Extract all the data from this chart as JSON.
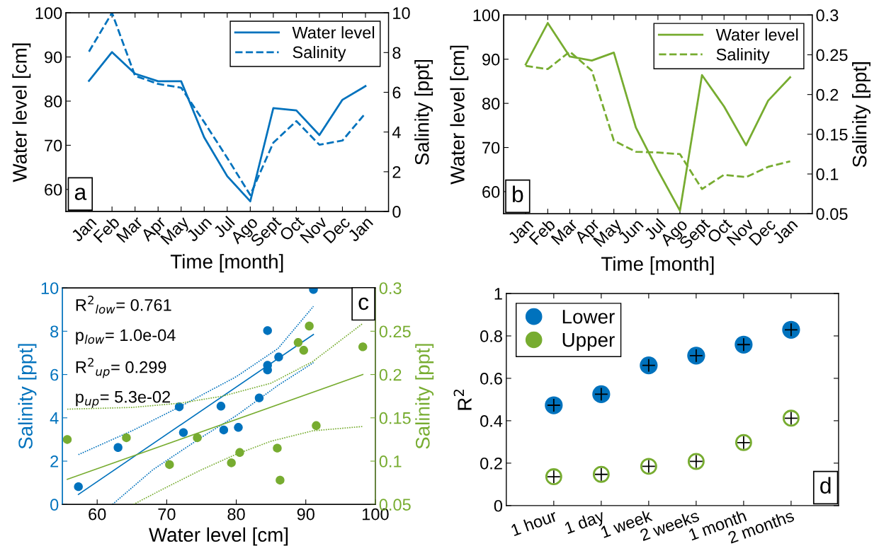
{
  "chart_data": [
    {
      "type": "line",
      "xlabel": "Time [month]",
      "ylabel": "Water level [cm]",
      "y2label": "Salinity [ppt]",
      "categories": [
        "Jan",
        "Feb",
        "Mar",
        "Apr",
        "May",
        "Jun",
        "Jul",
        "Ago",
        "Sept",
        "Oct",
        "Nov",
        "Dec",
        "Jan"
      ],
      "series": [
        {
          "name": "Water level",
          "color": "#0072bd",
          "line_style": "solid",
          "values": [
            84.6,
            91.1,
            86.2,
            84.5,
            84.5,
            71.8,
            63.0,
            57.3,
            78.4,
            77.9,
            72.3,
            80.3,
            83.4
          ]
        },
        {
          "name": "Salinity",
          "color": "#0072bd",
          "line_style": "dashed",
          "axis": "y2",
          "values": [
            8.05,
            10.0,
            6.83,
            6.42,
            6.23,
            4.5,
            2.7,
            0.83,
            3.46,
            4.55,
            3.36,
            3.57,
            4.95
          ]
        }
      ],
      "ylim": [
        55,
        100
      ],
      "yticks": [
        60,
        70,
        80,
        90,
        100
      ],
      "y2lim": [
        0,
        10
      ],
      "y2ticks": [
        0,
        2,
        4,
        6,
        8,
        10
      ],
      "legend": "top right",
      "annotations": [
        "a"
      ]
    },
    {
      "type": "line",
      "xlabel": "Time [month]",
      "ylabel": "Water level [cm]",
      "y2label": "Salinity [ppt]",
      "categories": [
        "Jan",
        "Feb",
        "Mar",
        "Apr",
        "May",
        "Jun",
        "Jul",
        "Ago",
        "Sept",
        "Oct",
        "Nov",
        "Dec",
        "Jan"
      ],
      "series": [
        {
          "name": "Water level",
          "color": "#77ac30",
          "line_style": "solid",
          "values": [
            88.8,
            98.2,
            90.6,
            89.7,
            91.5,
            74.5,
            64.8,
            55.7,
            86.4,
            79.3,
            70.5,
            80.6,
            85.9
          ]
        },
        {
          "name": "Salinity",
          "color": "#77ac30",
          "line_style": "dashed",
          "axis": "y2",
          "values": [
            0.236,
            0.232,
            0.254,
            0.23,
            0.142,
            0.128,
            0.127,
            0.125,
            0.081,
            0.099,
            0.096,
            0.109,
            0.116
          ]
        }
      ],
      "ylim": [
        55,
        100
      ],
      "yticks": [
        60,
        70,
        80,
        90,
        100
      ],
      "y2lim": [
        0.05,
        0.3
      ],
      "y2ticks": [
        0.05,
        0.1,
        0.15,
        0.2,
        0.25,
        0.3
      ],
      "legend": "top right",
      "annotations": [
        "b"
      ]
    },
    {
      "type": "scatter",
      "xlabel": "Water level [cm]",
      "ylabel": "Salinity [ppt]",
      "y2label": "Salinity [ppt]",
      "series": [
        {
          "color": "#0072bd",
          "x": [
            57.3,
            63.0,
            71.8,
            72.4,
            77.8,
            78.2,
            80.3,
            83.3,
            84.5,
            84.5,
            84.5,
            86.1,
            91.1
          ],
          "values": [
            0.82,
            2.63,
            4.51,
            3.32,
            4.54,
            3.44,
            3.56,
            4.92,
            8.03,
            6.43,
            6.21,
            6.81,
            9.93
          ]
        },
        {
          "color": "#77ac30",
          "axis": "y2",
          "x": [
            55.7,
            64.2,
            70.4,
            74.4,
            79.3,
            80.5,
            85.9,
            86.3,
            88.9,
            89.7,
            90.5,
            91.5,
            98.2
          ],
          "values": [
            0.125,
            0.127,
            0.096,
            0.127,
            0.098,
            0.11,
            0.115,
            0.078,
            0.237,
            0.228,
            0.256,
            0.141,
            0.232
          ]
        },
        {
          "type": "line",
          "color": "#0072bd",
          "line_style": "solid",
          "x": [
            57.3,
            91.1
          ],
          "values": [
            0.46,
            7.85
          ]
        },
        {
          "type": "line",
          "color": "#0072bd",
          "line_style": "dotted",
          "x": [
            57.3,
            65,
            71.8,
            80,
            86,
            91.1
          ],
          "values": [
            2.3,
            3.4,
            4.5,
            5.9,
            7.2,
            9.15
          ]
        },
        {
          "type": "line",
          "color": "#0072bd",
          "line_style": "dotted",
          "x": [
            62.2,
            68,
            75,
            80,
            86,
            91.1
          ],
          "values": [
            0,
            1.6,
            3.1,
            4.1,
            5.5,
            6.55
          ]
        },
        {
          "type": "line",
          "color": "#77ac30",
          "axis": "y2",
          "line_style": "solid",
          "x": [
            55.7,
            98.2
          ],
          "values": [
            0.079,
            0.2
          ]
        },
        {
          "type": "line",
          "color": "#77ac30",
          "axis": "y2",
          "line_style": "dotted",
          "x": [
            55.7,
            65,
            72,
            78,
            85,
            91,
            98.2
          ],
          "values": [
            0.16,
            0.162,
            0.167,
            0.175,
            0.19,
            0.215,
            0.259
          ]
        },
        {
          "type": "line",
          "color": "#77ac30",
          "axis": "y2",
          "line_style": "dotted",
          "x": [
            65.2,
            70,
            75,
            80,
            85,
            91,
            98.2
          ],
          "values": [
            0.05,
            0.07,
            0.09,
            0.108,
            0.123,
            0.135,
            0.14
          ]
        }
      ],
      "xlim": [
        55,
        100
      ],
      "xticks": [
        60,
        70,
        80,
        90,
        100
      ],
      "ylim": [
        0,
        10
      ],
      "yticks": [
        0,
        2,
        4,
        6,
        8,
        10
      ],
      "y2lim": [
        0.05,
        0.3
      ],
      "y2ticks": [
        0.05,
        0.1,
        0.15,
        0.2,
        0.25,
        0.3
      ],
      "annotations": [
        "R$^{2}$$_{low}$= 0.761",
        "p$_{low}$= 1.0e-04",
        "R$^{2}$$_{up}$= 0.299",
        "p$_{up}$= 5.3e-02",
        "c"
      ]
    },
    {
      "type": "scatter",
      "ylabel": "R$^{2}$",
      "categories": [
        "1 hour",
        "1 day",
        "1 week",
        "2 weeks",
        "1 month",
        "2 months"
      ],
      "series": [
        {
          "name": "Lower",
          "color": "#0072bd",
          "marker": "circle",
          "values": [
            0.473,
            0.525,
            0.661,
            0.707,
            0.759,
            0.829
          ]
        },
        {
          "name": "Upper",
          "color": "#77ac30",
          "marker": "circle",
          "values": [
            0.136,
            0.147,
            0.185,
            0.208,
            0.297,
            0.412
          ]
        },
        {
          "color": "#000000",
          "marker": "cross",
          "values": [
            0.473,
            0.525,
            0.661,
            0.707,
            0.759,
            0.829
          ]
        },
        {
          "color": "#000000",
          "marker": "cross",
          "values": [
            0.136,
            0.147,
            0.185,
            0.208,
            0.297,
            0.412
          ]
        }
      ],
      "ylim": [
        0,
        1
      ],
      "yticks": [
        0,
        0.2,
        0.4,
        0.6,
        0.8,
        1
      ],
      "legend": "top left",
      "annotations": [
        "d"
      ]
    }
  ]
}
